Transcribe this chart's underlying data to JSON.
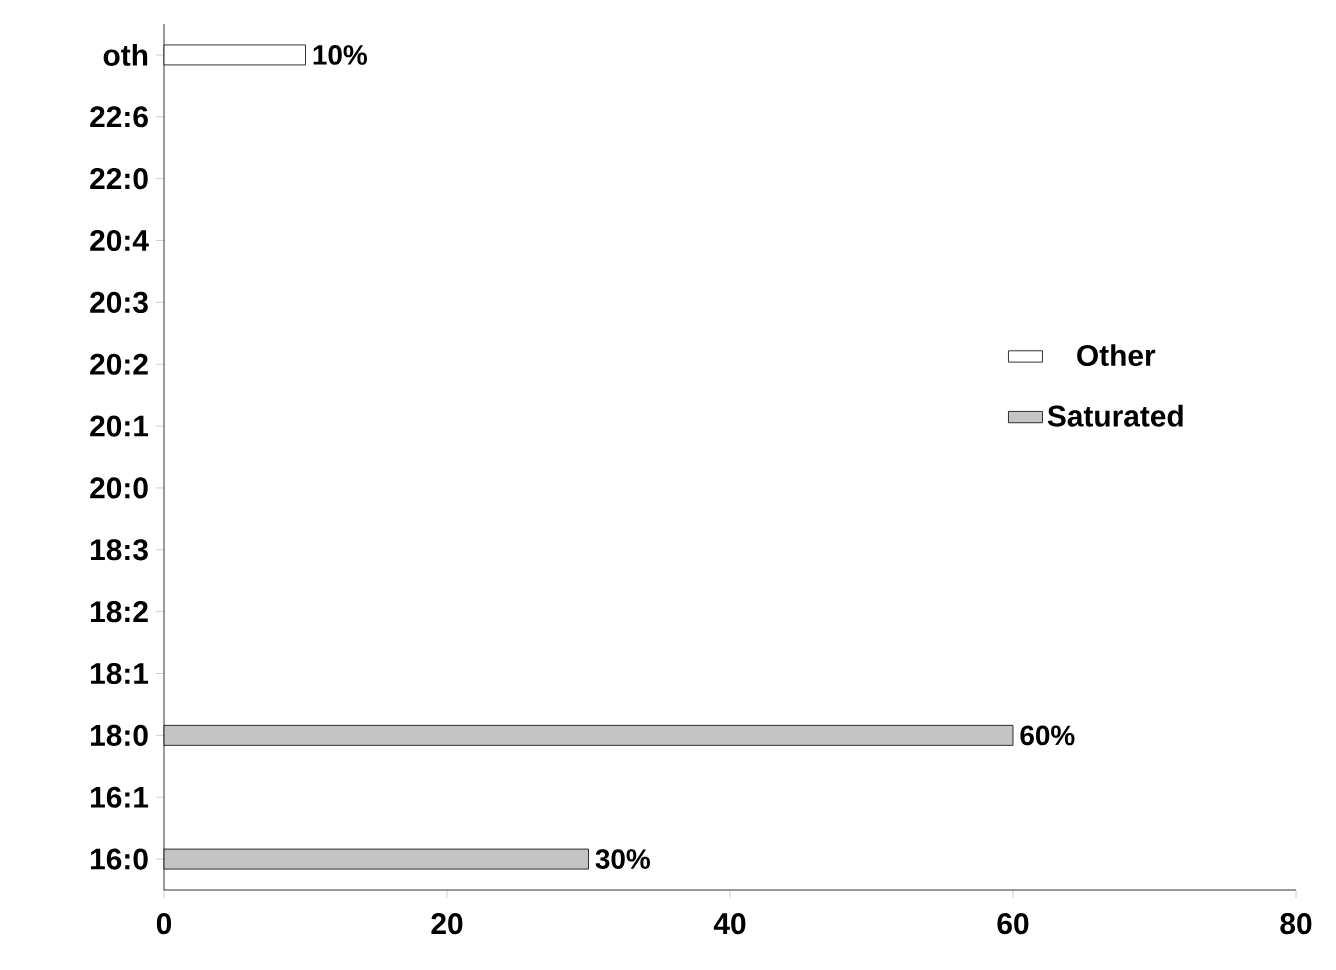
{
  "chart_data": {
    "type": "bar",
    "orientation": "horizontal",
    "categories": [
      "oth",
      "22:6",
      "22:0",
      "20:4",
      "20:3",
      "20:2",
      "20:1",
      "20:0",
      "18:3",
      "18:2",
      "18:1",
      "18:0",
      "16:1",
      "16:0"
    ],
    "series": [
      {
        "name": "Other",
        "color": "#ffffff",
        "values": [
          10,
          null,
          null,
          null,
          null,
          null,
          null,
          null,
          null,
          null,
          null,
          null,
          null,
          null
        ],
        "value_labels": [
          "10%",
          null,
          null,
          null,
          null,
          null,
          null,
          null,
          null,
          null,
          null,
          null,
          null,
          null
        ]
      },
      {
        "name": "Saturated",
        "color": "#c4c4c4",
        "values": [
          null,
          null,
          null,
          null,
          null,
          null,
          null,
          null,
          null,
          null,
          null,
          60,
          null,
          30
        ],
        "value_labels": [
          null,
          null,
          null,
          null,
          null,
          null,
          null,
          null,
          null,
          null,
          null,
          "60%",
          null,
          "30%"
        ]
      }
    ],
    "xlim": [
      0,
      80
    ],
    "xticks": [
      0,
      20,
      40,
      60,
      80
    ],
    "grid": false,
    "legend": "right"
  }
}
